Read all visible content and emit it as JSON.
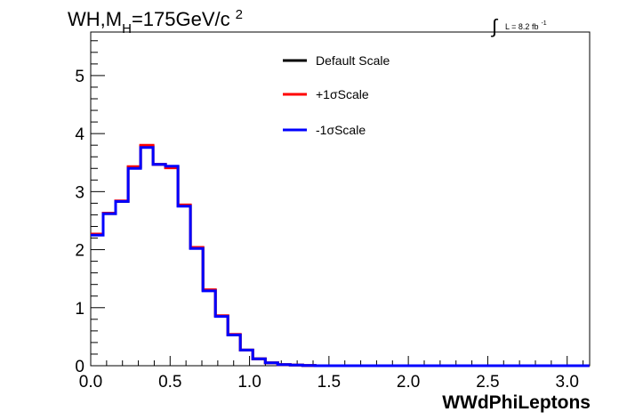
{
  "chart_data": {
    "type": "line",
    "title": "WH,M",
    "title_sub": "H",
    "title_rest": "=175GeV/c",
    "title_sup": "2",
    "lumi_label": "L = 8.2 fb",
    "lumi_sup": "-1",
    "xlabel": "WWdPhiLeptons",
    "xlim": [
      0,
      3.1416
    ],
    "ylim": [
      0,
      5.75
    ],
    "x_ticks": [
      0.0,
      0.5,
      1.0,
      1.5,
      2.0,
      2.5,
      3.0
    ],
    "x_tick_labels": [
      "0.0",
      "0.5",
      "1.0",
      "1.5",
      "2.0",
      "2.5",
      "3.0"
    ],
    "y_ticks": [
      0,
      1,
      2,
      3,
      4,
      5
    ],
    "y_tick_labels": [
      "0",
      "1",
      "2",
      "3",
      "4",
      "5"
    ],
    "bin_width": 0.0785,
    "legend_position": "top-center",
    "series": [
      {
        "name": "Default Scale",
        "color": "#000000",
        "values": [
          2.26,
          2.62,
          2.83,
          3.42,
          3.78,
          3.47,
          3.43,
          2.76,
          2.03,
          1.3,
          0.86,
          0.53,
          0.27,
          0.12,
          0.05,
          0.02,
          0.01,
          0.005,
          0,
          0,
          0,
          0,
          0,
          0,
          0,
          0,
          0,
          0,
          0,
          0,
          0,
          0,
          0,
          0,
          0,
          0,
          0,
          0,
          0,
          0
        ]
      },
      {
        "name": "+1σScale",
        "color": "#ff0000",
        "values": [
          2.27,
          2.63,
          2.84,
          3.43,
          3.8,
          3.47,
          3.41,
          2.77,
          2.04,
          1.31,
          0.86,
          0.54,
          0.27,
          0.12,
          0.05,
          0.02,
          0.01,
          0.005,
          0,
          0,
          0,
          0,
          0,
          0,
          0,
          0,
          0,
          0,
          0,
          0,
          0,
          0,
          0,
          0,
          0,
          0,
          0,
          0,
          0,
          0
        ]
      },
      {
        "name": "-1σScale",
        "color": "#0000ff",
        "values": [
          2.25,
          2.62,
          2.83,
          3.4,
          3.76,
          3.47,
          3.44,
          2.75,
          2.02,
          1.29,
          0.85,
          0.53,
          0.27,
          0.12,
          0.05,
          0.02,
          0.01,
          0.005,
          0,
          0,
          0,
          0,
          0,
          0,
          0,
          0,
          0,
          0,
          0,
          0,
          0,
          0,
          0,
          0,
          0,
          0,
          0,
          0,
          0,
          0
        ]
      }
    ]
  }
}
